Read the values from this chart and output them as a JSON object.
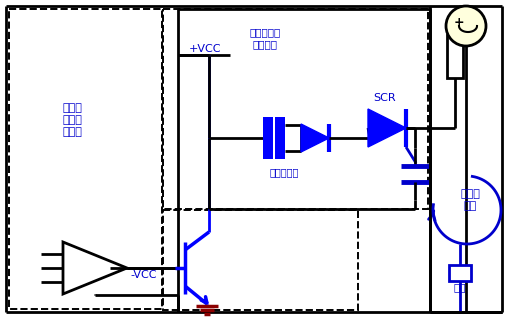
{
  "bg": "#ffffff",
  "blue": "#0000cc",
  "black": "#000000",
  "dark_red": "#8B0000",
  "yellow": "#ffffdd",
  "blue_fill": "#0000ff",
  "figw": 5.09,
  "figh": 3.19,
  "dpi": 100,
  "lbl_control": "控制电\n路印刷\n电路板",
  "lbl_power_pcb": "功率电路印\n制电路板",
  "lbl_high": "高功率\n线路",
  "lbl_load": "负载",
  "lbl_scr": "SCR",
  "lbl_transformer": "脉冲变压器",
  "lbl_vcc_plus": "+VCC",
  "lbl_vcc_minus": "-VCC"
}
